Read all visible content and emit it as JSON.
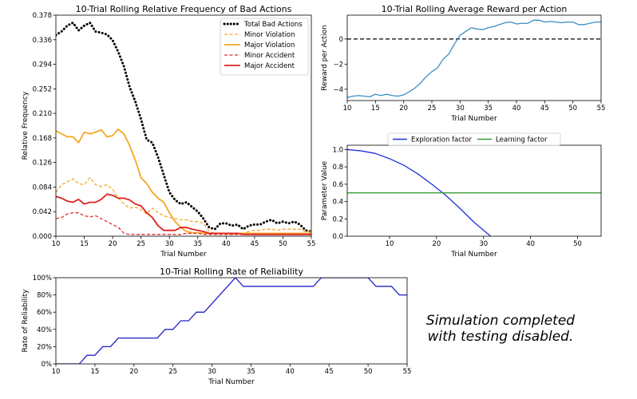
{
  "chart_data": [
    {
      "type": "line",
      "title": "10-Trial Rolling Relative Frequency of Bad Actions",
      "xlabel": "Trial Number",
      "ylabel": "Relative Frequency",
      "xlim": [
        10,
        55
      ],
      "ylim": [
        0,
        0.378
      ],
      "xticks": [
        10,
        15,
        20,
        25,
        30,
        35,
        40,
        45,
        50,
        55
      ],
      "yticks": [
        0.0,
        0.042,
        0.084,
        0.126,
        0.168,
        0.21,
        0.252,
        0.294,
        0.336,
        0.378
      ],
      "ytick_labels": [
        "0.000",
        "0.042",
        "0.084",
        "0.126",
        "0.168",
        "0.210",
        "0.252",
        "0.294",
        "0.336",
        "0.378"
      ],
      "legend_position": "top-right",
      "x": [
        10,
        11,
        12,
        13,
        14,
        15,
        16,
        17,
        18,
        19,
        20,
        21,
        22,
        23,
        24,
        25,
        26,
        27,
        28,
        29,
        30,
        31,
        32,
        33,
        34,
        35,
        36,
        37,
        38,
        39,
        40,
        41,
        42,
        43,
        44,
        45,
        46,
        47,
        48,
        49,
        50,
        51,
        52,
        53,
        54,
        55
      ],
      "series": [
        {
          "name": "Total Bad Actions",
          "color": "#000000",
          "dash": "dotted",
          "width": 3,
          "values": [
            0.344,
            0.35,
            0.36,
            0.365,
            0.352,
            0.36,
            0.365,
            0.35,
            0.348,
            0.345,
            0.335,
            0.315,
            0.29,
            0.255,
            0.23,
            0.2,
            0.165,
            0.16,
            0.135,
            0.105,
            0.075,
            0.062,
            0.055,
            0.058,
            0.05,
            0.042,
            0.03,
            0.015,
            0.012,
            0.022,
            0.022,
            0.018,
            0.02,
            0.012,
            0.018,
            0.02,
            0.02,
            0.025,
            0.028,
            0.022,
            0.025,
            0.022,
            0.025,
            0.02,
            0.01,
            0.008
          ]
        },
        {
          "name": "Minor Violation",
          "color": "#f5a623",
          "dash": "dashed",
          "width": 1.3,
          "values": [
            0.075,
            0.088,
            0.093,
            0.098,
            0.09,
            0.088,
            0.1,
            0.088,
            0.085,
            0.088,
            0.08,
            0.065,
            0.055,
            0.048,
            0.05,
            0.045,
            0.038,
            0.048,
            0.04,
            0.035,
            0.032,
            0.03,
            0.028,
            0.028,
            0.025,
            0.025,
            0.022,
            0.008,
            0.005,
            0.005,
            0.005,
            0.003,
            0.005,
            0.005,
            0.008,
            0.01,
            0.01,
            0.012,
            0.012,
            0.01,
            0.012,
            0.012,
            0.012,
            0.012,
            0.008,
            0.008
          ]
        },
        {
          "name": "Major Violation",
          "color": "#f5a623",
          "dash": "solid",
          "width": 1.8,
          "values": [
            0.18,
            0.175,
            0.17,
            0.17,
            0.16,
            0.178,
            0.175,
            0.178,
            0.182,
            0.17,
            0.172,
            0.183,
            0.175,
            0.155,
            0.13,
            0.1,
            0.09,
            0.075,
            0.065,
            0.058,
            0.04,
            0.025,
            0.015,
            0.008,
            0.006,
            0.006,
            0.005,
            0.005,
            0.005,
            0.005,
            0.005,
            0.003,
            0.005,
            0.005,
            0.005,
            0.005,
            0.005,
            0.005,
            0.005,
            0.005,
            0.005,
            0.005,
            0.005,
            0.005,
            0.005,
            0.005
          ]
        },
        {
          "name": "Minor Accident",
          "color": "#e03030",
          "dash": "dashed",
          "width": 1.3,
          "values": [
            0.03,
            0.032,
            0.038,
            0.04,
            0.04,
            0.035,
            0.033,
            0.035,
            0.03,
            0.025,
            0.02,
            0.015,
            0.005,
            0.003,
            0.003,
            0.003,
            0.003,
            0.003,
            0.003,
            0.003,
            0.003,
            0.003,
            0.003,
            0.005,
            0.005,
            0.005,
            0.003,
            0.003,
            0.003,
            0.003,
            0.003,
            0.003,
            0.003,
            0.003,
            0.003,
            0.003,
            0.003,
            0.003,
            0.003,
            0.003,
            0.003,
            0.003,
            0.003,
            0.003,
            0.003,
            0.003
          ]
        },
        {
          "name": "Major Accident",
          "color": "#e02020",
          "dash": "solid",
          "width": 1.8,
          "values": [
            0.068,
            0.065,
            0.06,
            0.058,
            0.063,
            0.055,
            0.058,
            0.058,
            0.063,
            0.072,
            0.07,
            0.065,
            0.065,
            0.062,
            0.055,
            0.052,
            0.04,
            0.032,
            0.018,
            0.01,
            0.01,
            0.01,
            0.015,
            0.015,
            0.012,
            0.01,
            0.008,
            0.005,
            0.005,
            0.005,
            0.005,
            0.005,
            0.005,
            0.003,
            0.003,
            0.003,
            0.003,
            0.003,
            0.003,
            0.003,
            0.003,
            0.003,
            0.003,
            0.003,
            0.003,
            0.003
          ]
        }
      ]
    },
    {
      "type": "line",
      "title": "10-Trial Rolling Average Reward per Action",
      "xlabel": "Trial Number",
      "ylabel": "Reward per Action",
      "xlim": [
        10,
        55
      ],
      "ylim": [
        -4.9,
        1.9
      ],
      "xticks": [
        10,
        15,
        20,
        25,
        30,
        35,
        40,
        45,
        50,
        55
      ],
      "yticks": [
        -4,
        -2,
        0
      ],
      "ytick_labels": [
        "−4",
        "−2",
        "0"
      ],
      "reference_line": {
        "y": 0,
        "color": "#000000",
        "dash": "dashed"
      },
      "x": [
        10,
        11,
        12,
        13,
        14,
        15,
        16,
        17,
        18,
        19,
        20,
        21,
        22,
        23,
        24,
        25,
        26,
        27,
        28,
        29,
        30,
        31,
        32,
        33,
        34,
        35,
        36,
        37,
        38,
        39,
        40,
        41,
        42,
        43,
        44,
        45,
        46,
        47,
        48,
        49,
        50,
        51,
        52,
        53,
        54,
        55
      ],
      "series": [
        {
          "color": "#3b8ec2",
          "width": 1.3,
          "values": [
            -4.65,
            -4.55,
            -4.5,
            -4.55,
            -4.6,
            -4.4,
            -4.5,
            -4.4,
            -4.5,
            -4.55,
            -4.45,
            -4.2,
            -3.9,
            -3.5,
            -3.0,
            -2.6,
            -2.3,
            -1.6,
            -1.2,
            -0.4,
            0.3,
            0.6,
            0.9,
            0.8,
            0.75,
            0.9,
            1.0,
            1.15,
            1.3,
            1.35,
            1.2,
            1.25,
            1.25,
            1.5,
            1.5,
            1.35,
            1.4,
            1.35,
            1.3,
            1.35,
            1.35,
            1.15,
            1.15,
            1.25,
            1.35,
            1.35
          ]
        }
      ]
    },
    {
      "type": "line",
      "title": "",
      "xlabel": "Trial Number",
      "ylabel": "Parameter Value",
      "xlim": [
        1,
        55
      ],
      "ylim": [
        0,
        1.05
      ],
      "xticks": [
        10,
        20,
        30,
        40,
        50
      ],
      "yticks": [
        0.0,
        0.2,
        0.4,
        0.6,
        0.8,
        1.0
      ],
      "ytick_labels": [
        "0.0",
        "0.2",
        "0.4",
        "0.6",
        "0.8",
        "1.0"
      ],
      "legend_position": "top",
      "series": [
        {
          "name": "Exploration factor",
          "color": "#2030d8",
          "width": 1.3,
          "x": [
            1,
            4,
            7,
            10,
            13,
            16,
            19,
            22,
            25,
            28,
            31.5
          ],
          "values": [
            1.0,
            0.985,
            0.955,
            0.895,
            0.82,
            0.72,
            0.6,
            0.47,
            0.32,
            0.16,
            0.0
          ]
        },
        {
          "name": "Learning factor",
          "color": "#3a9a3a",
          "width": 1.3,
          "x": [
            1,
            55
          ],
          "values": [
            0.5,
            0.5
          ]
        }
      ]
    },
    {
      "type": "line",
      "title": "10-Trial Rolling Rate of Reliability",
      "xlabel": "Trial Number",
      "ylabel": "Rate of Reliability",
      "xlim": [
        10,
        55
      ],
      "ylim": [
        0,
        100
      ],
      "xticks": [
        10,
        15,
        20,
        25,
        30,
        35,
        40,
        45,
        50,
        55
      ],
      "yticks": [
        0,
        20,
        40,
        60,
        80,
        100
      ],
      "ytick_labels": [
        "0%",
        "20%",
        "40%",
        "60%",
        "80%",
        "100%"
      ],
      "x": [
        10,
        11,
        12,
        13,
        14,
        15,
        16,
        17,
        18,
        19,
        20,
        21,
        22,
        23,
        24,
        25,
        26,
        27,
        28,
        29,
        30,
        31,
        32,
        33,
        34,
        35,
        36,
        37,
        38,
        39,
        40,
        41,
        42,
        43,
        44,
        45,
        46,
        47,
        48,
        49,
        50,
        51,
        52,
        53,
        54,
        55
      ],
      "series": [
        {
          "color": "#2020c8",
          "width": 1.3,
          "values": [
            0,
            0,
            0,
            0,
            10,
            10,
            20,
            20,
            30,
            30,
            30,
            30,
            30,
            30,
            40,
            40,
            50,
            50,
            60,
            60,
            70,
            80,
            90,
            100,
            90,
            90,
            90,
            90,
            90,
            90,
            90,
            90,
            90,
            90,
            100,
            100,
            100,
            100,
            100,
            100,
            100,
            90,
            90,
            90,
            80,
            80
          ]
        }
      ]
    }
  ],
  "status_message": [
    "Simulation completed",
    "with testing disabled."
  ]
}
